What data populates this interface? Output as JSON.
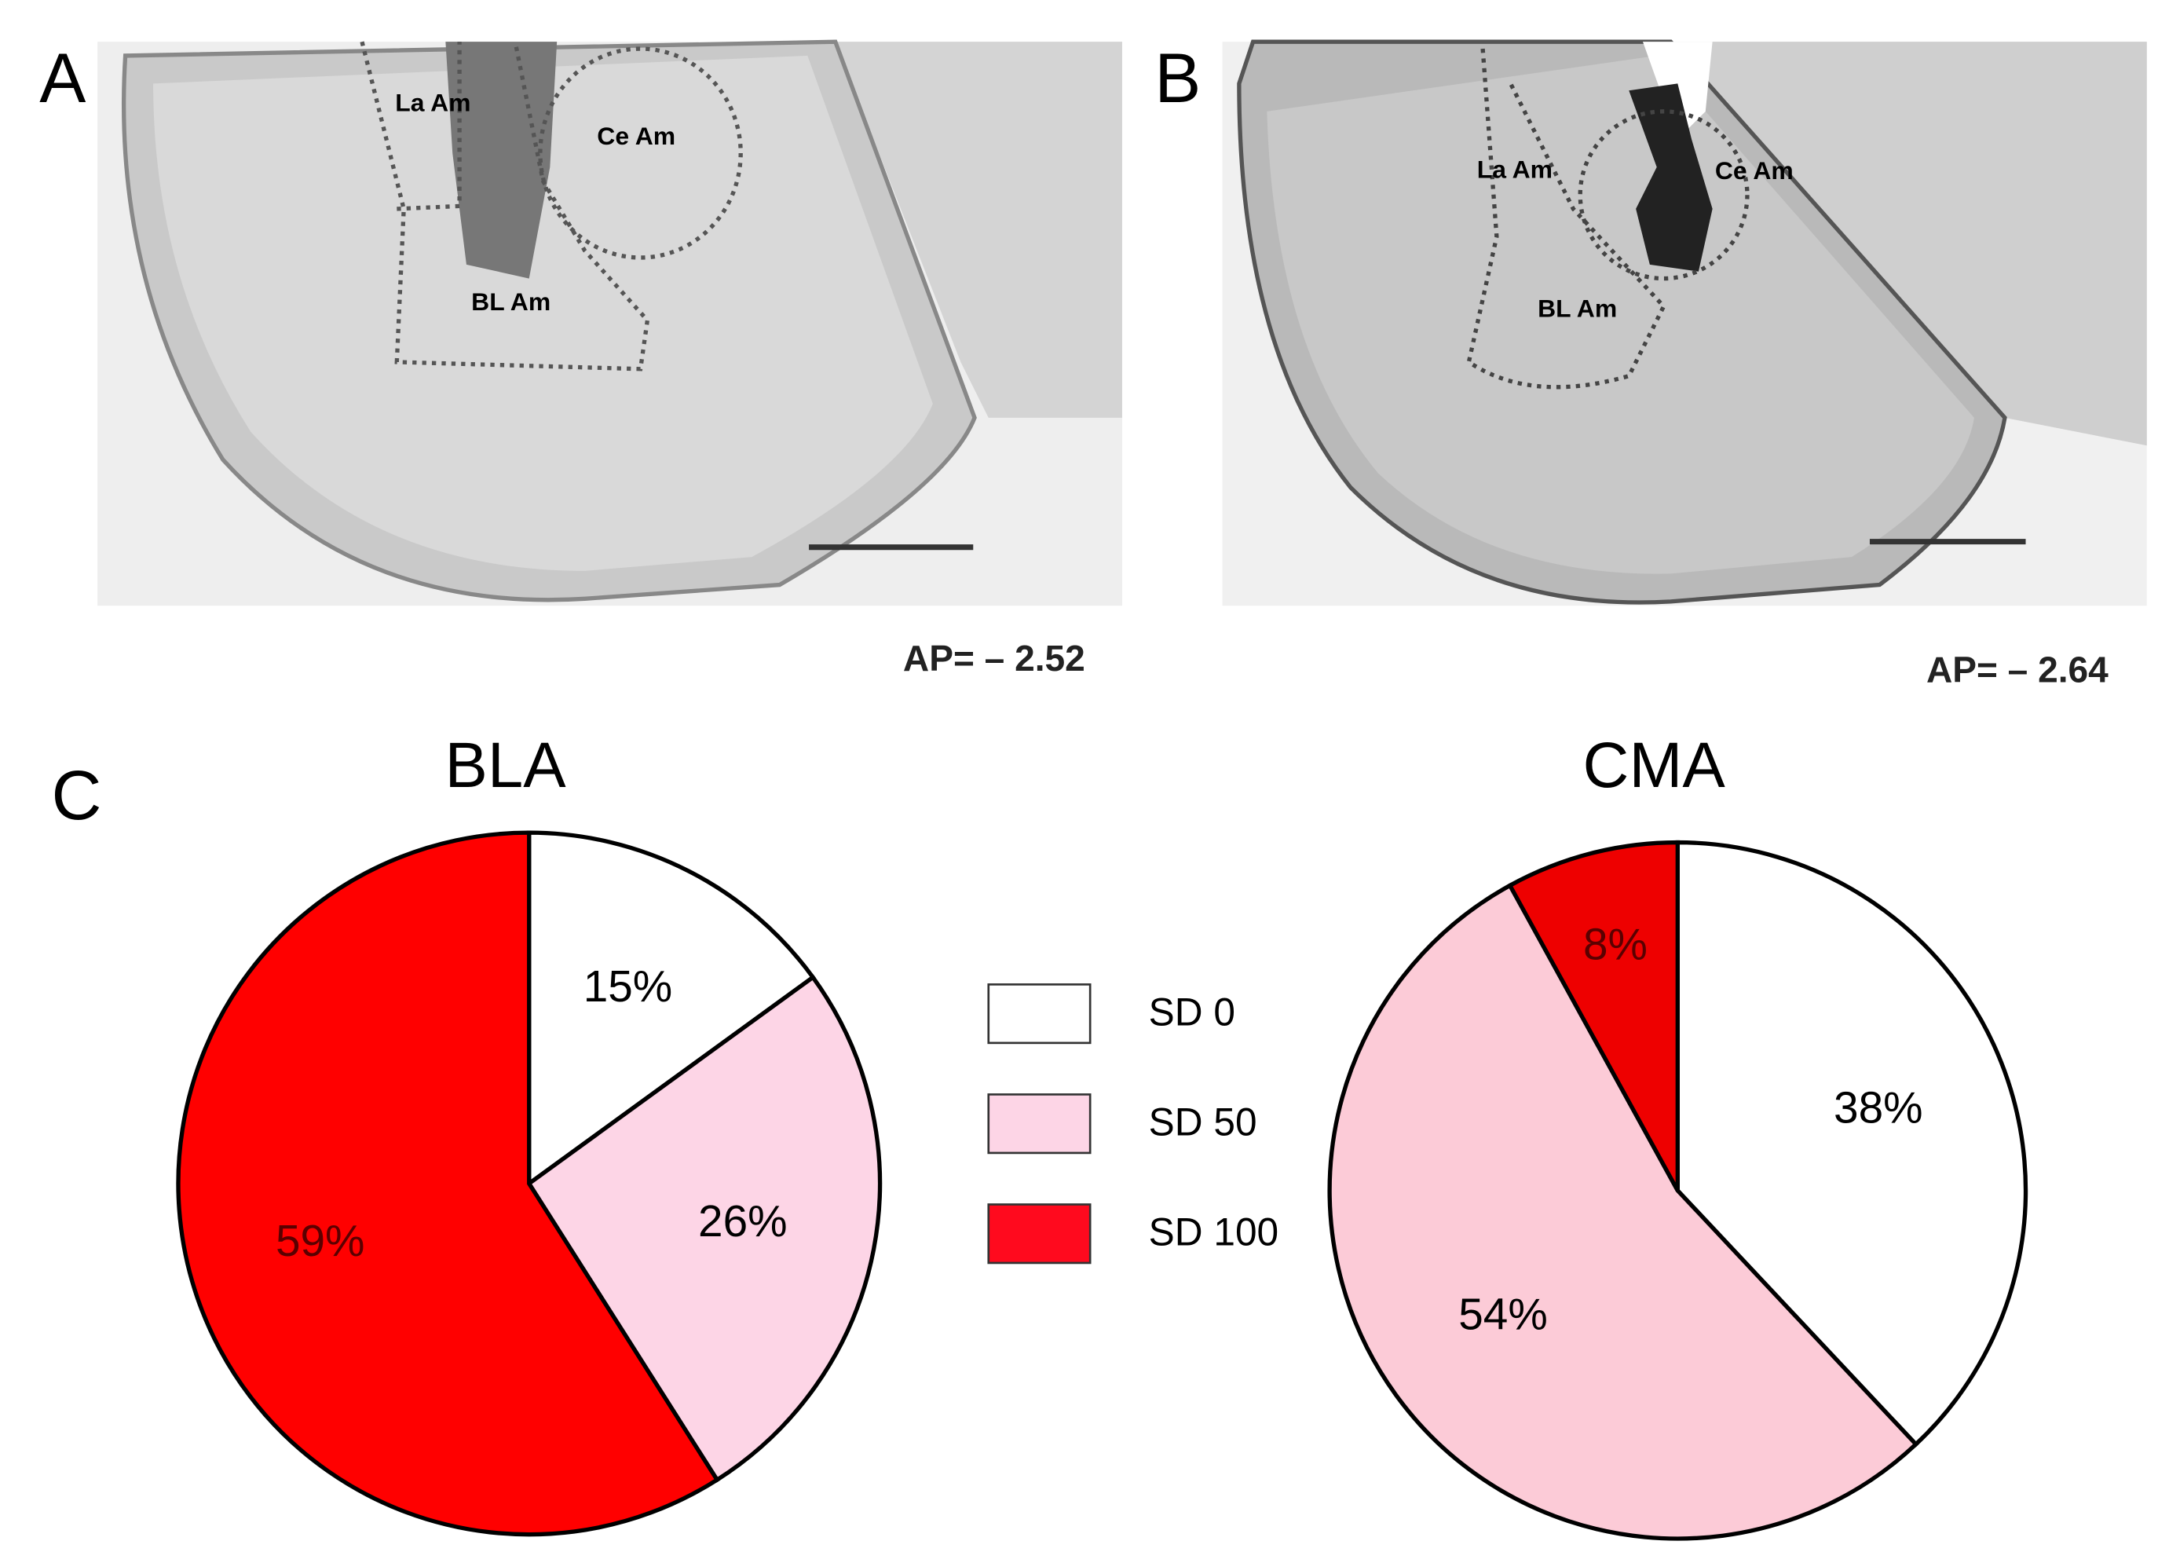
{
  "panels": {
    "a": {
      "letter": "A",
      "regions": [
        "La Am",
        "Ce Am",
        "BL Am"
      ],
      "ap": "AP= – 2.52"
    },
    "b": {
      "letter": "B",
      "regions": [
        "La Am",
        "Ce Am",
        "BL Am"
      ],
      "ap": "AP= – 2.64"
    },
    "c": {
      "letter": "C"
    }
  },
  "legend": {
    "items": [
      "SD 0",
      "SD 50",
      "SD 100"
    ],
    "colors": [
      "#ffffff",
      "#fdd5e6",
      "#ff0a1e"
    ]
  },
  "chart_data": [
    {
      "type": "pie",
      "title": "BLA",
      "categories": [
        "SD 0",
        "SD 50",
        "SD 100"
      ],
      "values": [
        15,
        26,
        59
      ],
      "value_labels": [
        "15%",
        "26%",
        "59%"
      ],
      "colors": [
        "#ffffff",
        "#fdd5e6",
        "#ff0000"
      ]
    },
    {
      "type": "pie",
      "title": "CMA",
      "categories": [
        "SD 0",
        "SD 50",
        "SD 100"
      ],
      "values": [
        38,
        54,
        8
      ],
      "value_labels": [
        "38%",
        "54%",
        "8%"
      ],
      "colors": [
        "#ffffff",
        "#fccbd7",
        "#ee0000"
      ]
    }
  ]
}
